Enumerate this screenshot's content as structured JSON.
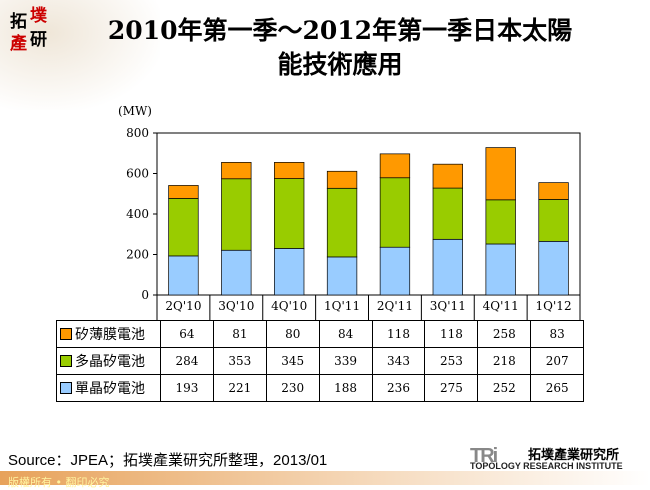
{
  "logo": {
    "chars": [
      "拓",
      "墣",
      "產",
      "研"
    ]
  },
  "title_line1": "2010年第一季～2012年第一季日本太陽",
  "title_line2": "能技術應用",
  "chart_data": {
    "type": "bar",
    "stacked": true,
    "unit_label": "(MW)",
    "categories": [
      "2Q'10",
      "3Q'10",
      "4Q'10",
      "1Q'11",
      "2Q'11",
      "3Q'11",
      "4Q'11",
      "1Q'12"
    ],
    "ylim": [
      0,
      800
    ],
    "yticks": [
      0,
      200,
      400,
      600,
      800
    ],
    "grid": false,
    "series": [
      {
        "name": "單晶矽電池",
        "color": "#99ccff",
        "values": [
          193,
          221,
          230,
          188,
          236,
          275,
          252,
          265
        ]
      },
      {
        "name": "多晶矽電池",
        "color": "#99cc00",
        "values": [
          284,
          353,
          345,
          339,
          343,
          253,
          218,
          207
        ]
      },
      {
        "name": "矽薄膜電池",
        "color": "#ff9900",
        "values": [
          64,
          81,
          80,
          84,
          118,
          118,
          258,
          83
        ]
      }
    ]
  },
  "source": "Source：JPEA；拓墣產業研究所整理，2013/01",
  "footer": "版權所有 • 翻印必究",
  "brand": {
    "mark": "TRi",
    "name_cn": "拓墣產業研究所",
    "name_en": "TOPOLOGY RESEARCH INSTITUTE"
  }
}
